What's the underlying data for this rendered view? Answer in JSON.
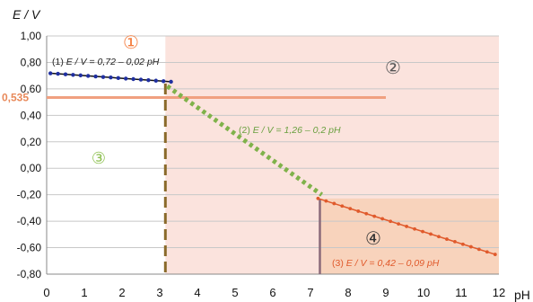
{
  "chart_data": {
    "type": "line",
    "ylabel": "E / V",
    "xlabel": "pH",
    "xlim": [
      0,
      12
    ],
    "ylim": [
      -0.8,
      1.0
    ],
    "x_ticks": [
      "0",
      "1",
      "2",
      "3",
      "4",
      "5",
      "6",
      "7",
      "8",
      "9",
      "10",
      "11",
      "12"
    ],
    "y_ticks": [
      "1,00",
      "0,80",
      "0,60",
      "0,40",
      "0,20",
      "0,00",
      "-0,20",
      "-0,40",
      "-0,60",
      "-0,80"
    ],
    "y_ticks_values": [
      1.0,
      0.8,
      0.6,
      0.4,
      0.2,
      0.0,
      -0.2,
      -0.4,
      -0.6,
      -0.8
    ],
    "grid": "horizontal",
    "series": [
      {
        "name": "(1)",
        "label": "E / V = 0,72 – 0,02 pH",
        "color": "#1f2fa0",
        "x": [
          0.1,
          1.0,
          2.0,
          3.0,
          3.3
        ],
        "y": [
          0.718,
          0.7,
          0.68,
          0.66,
          0.654
        ]
      },
      {
        "name": "(2)",
        "label": "E / V = 1,26 – 0,2 pH",
        "color": "#7fb24a",
        "x": [
          3.2,
          4.0,
          5.0,
          6.0,
          7.3
        ],
        "y": [
          0.62,
          0.46,
          0.26,
          0.06,
          -0.2
        ]
      },
      {
        "name": "(3)",
        "label": "E / V = 0,42 – 0,09 pH",
        "color": "#e05a2c",
        "x": [
          7.2,
          8.0,
          9.0,
          10.0,
          11.0,
          11.9
        ],
        "y": [
          -0.228,
          -0.3,
          -0.39,
          -0.48,
          -0.57,
          -0.651
        ]
      }
    ],
    "reference_line": {
      "y": 0.535,
      "label": "0,535",
      "x_end": 9.0,
      "color": "#f0a080"
    },
    "vertical_lines": [
      {
        "x": 3.15,
        "color": "#8a6a2a",
        "style": "dashed"
      },
      {
        "x": 7.25,
        "color": "#8a6a7a",
        "style": "solid"
      }
    ],
    "regions": [
      {
        "label": "①",
        "color": "#f47a3a"
      },
      {
        "label": "②",
        "color": "#555555"
      },
      {
        "label": "③",
        "color": "#8cbf4e"
      },
      {
        "label": "④",
        "color": "#333333"
      }
    ],
    "region_fill": "#fbe3dd",
    "region4_fill": "#f7d0b8"
  }
}
